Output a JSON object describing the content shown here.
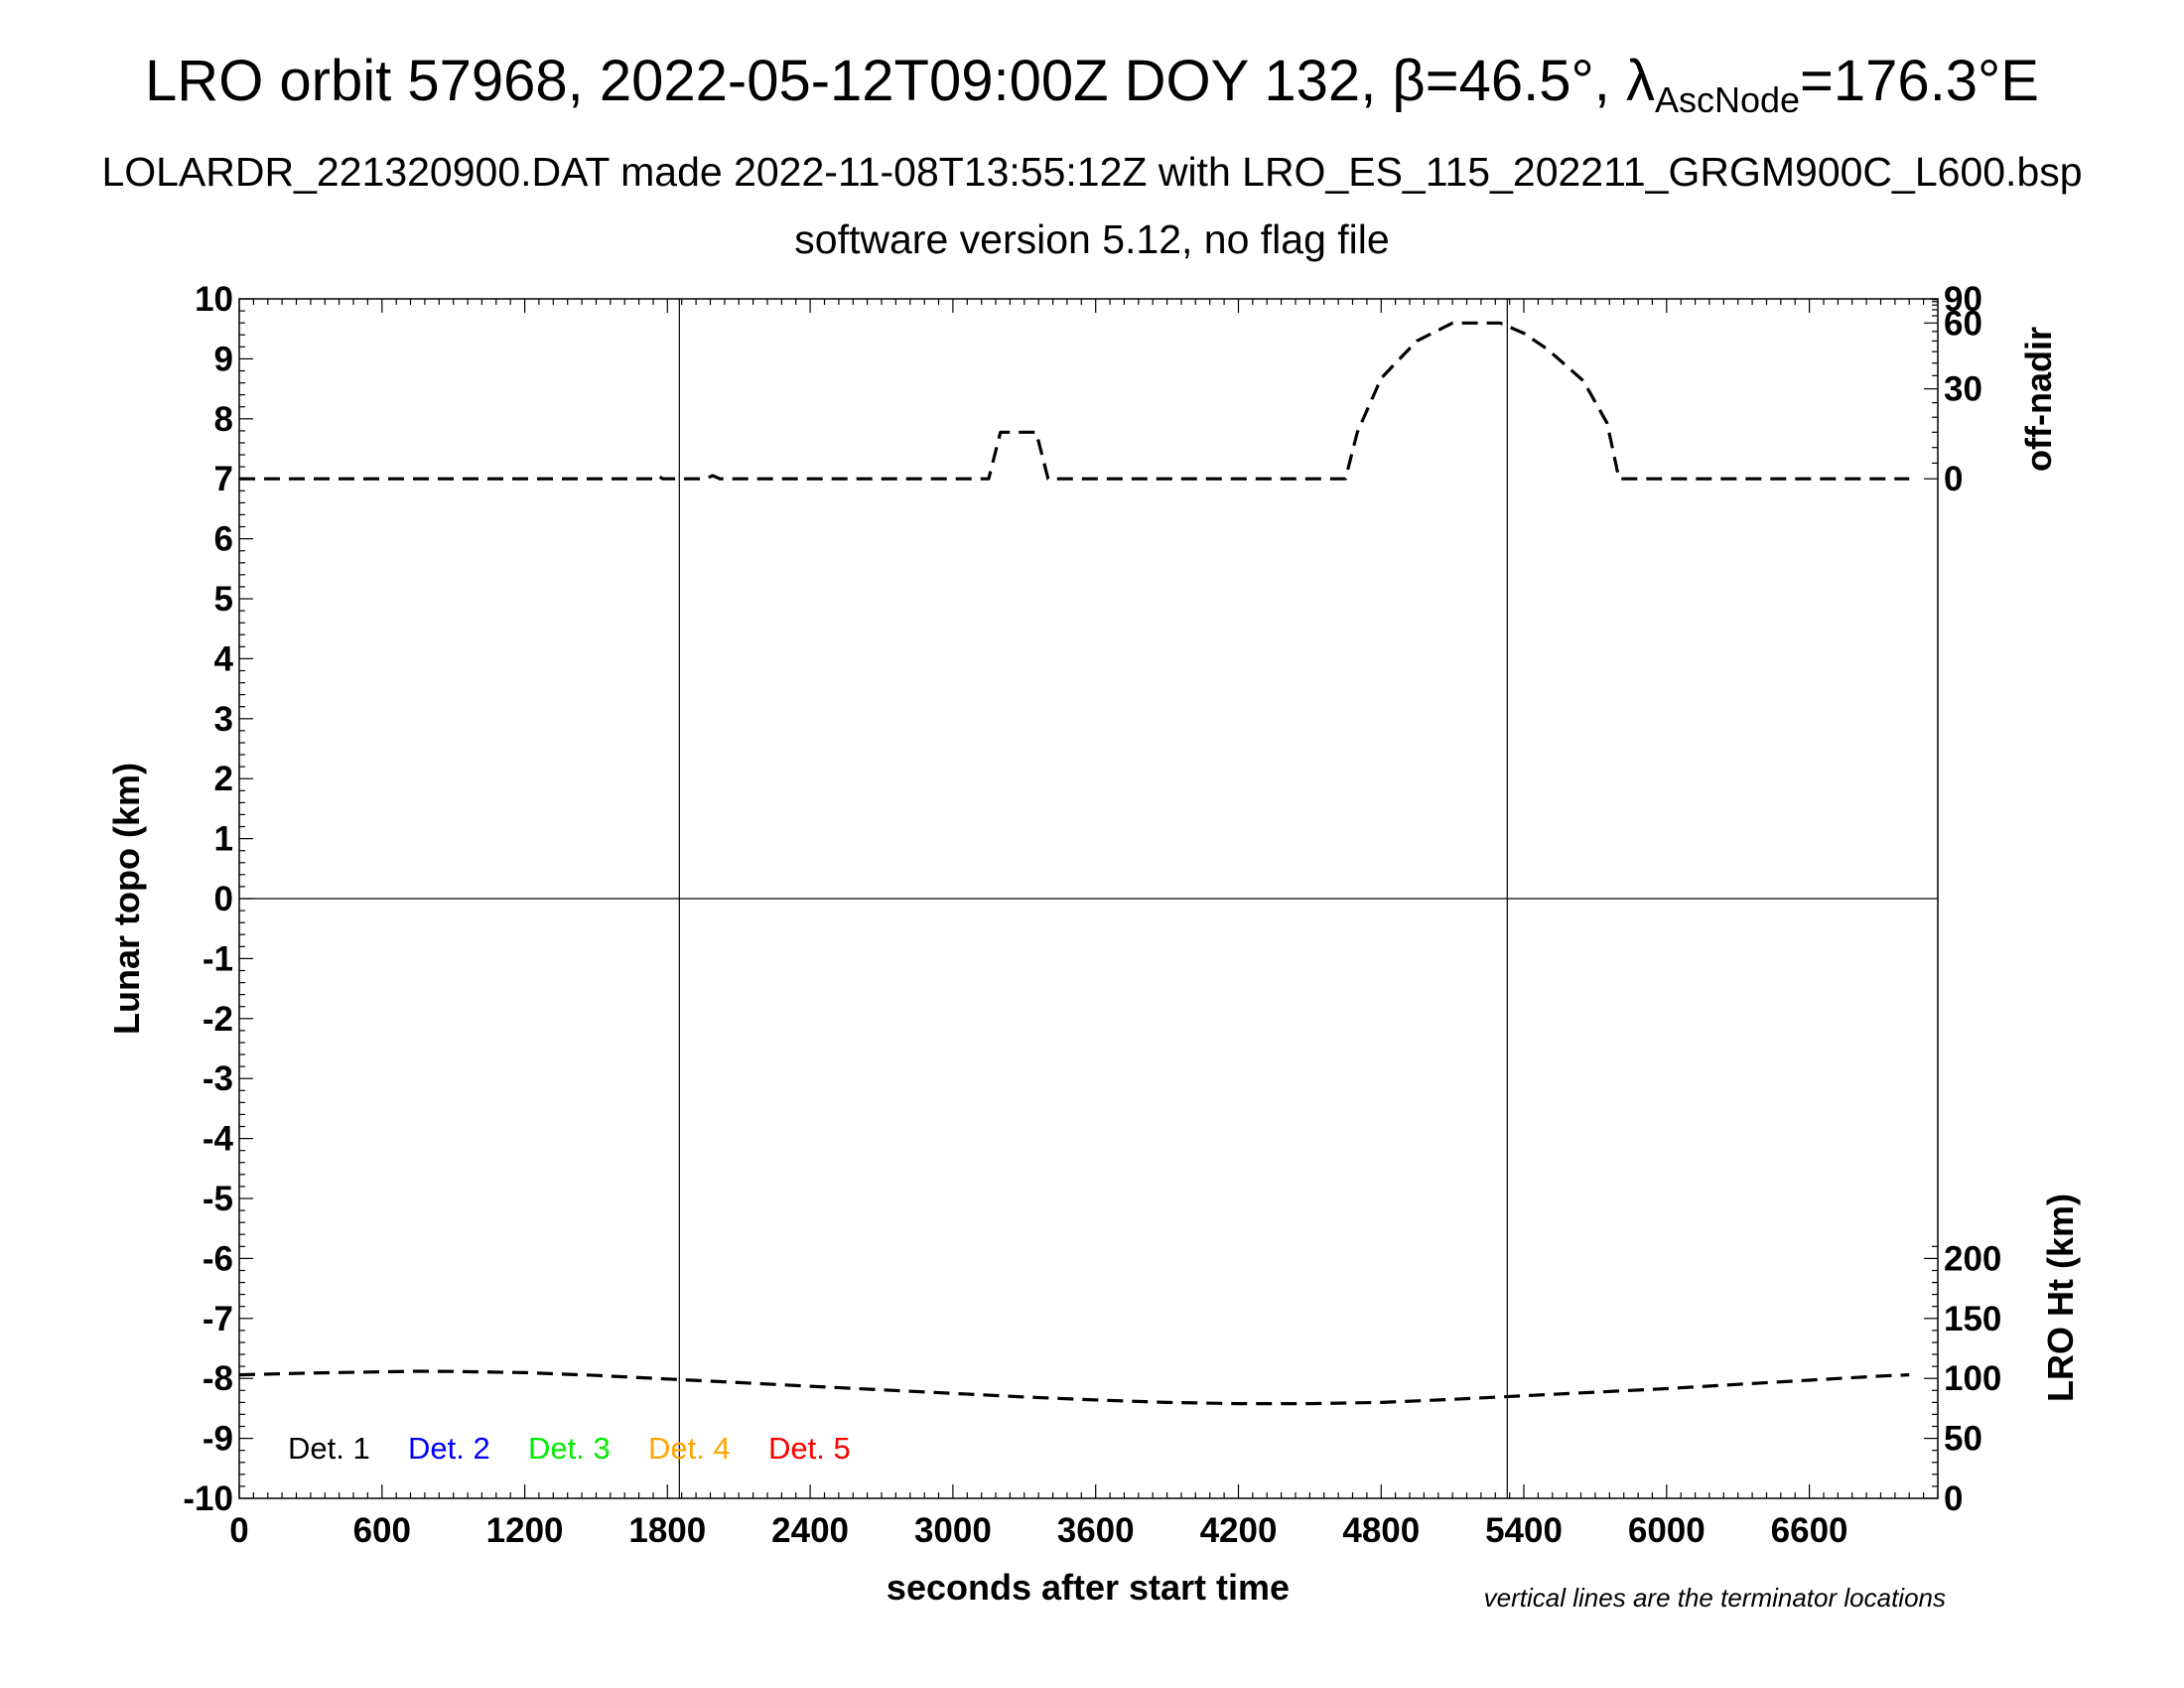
{
  "title": {
    "main_prefix": "LRO orbit 57968, 2022-05-12T09:00Z DOY 132, β=46.5°, λ",
    "main_sub": "AscNode",
    "main_suffix": "=176.3°E",
    "line2": "LOLARDR_221320900.DAT made 2022-11-08T13:55:12Z with LRO_ES_115_202211_GRGM900C_L600.bsp",
    "line3": "software version 5.12, no flag file"
  },
  "chart_data": {
    "type": "line",
    "xlabel": "seconds after start time",
    "xlim": [
      0,
      7140
    ],
    "x_ticks": [
      0,
      600,
      1200,
      1800,
      2400,
      3000,
      3600,
      4200,
      4800,
      5400,
      6000,
      6600
    ],
    "left_axis": {
      "label": "Lunar topo (km)",
      "ylim": [
        -10,
        10
      ],
      "ticks": [
        10,
        9,
        8,
        7,
        6,
        5,
        4,
        3,
        2,
        1,
        0,
        -1,
        -2,
        -3,
        -4,
        -5,
        -6,
        -7,
        -8,
        -9,
        -10
      ]
    },
    "right_axis_offnadir": {
      "label": "off-nadir",
      "ticks": [
        90,
        60,
        30,
        0
      ]
    },
    "right_axis_height": {
      "label": "LRO Ht (km)",
      "ticks": [
        200,
        150,
        100,
        50,
        0
      ]
    },
    "terminator_lines_x": [
      1850,
      5330
    ],
    "zero_line": 0,
    "series": [
      {
        "axis": "off-nadir",
        "style": "dashed",
        "x": [
          0,
          1740,
          1760,
          1780,
          1960,
          1990,
          2020,
          3150,
          3200,
          3250,
          3350,
          3400,
          4650,
          4700,
          4800,
          4950,
          5100,
          5200,
          5300,
          5400,
          5500,
          5650,
          5750,
          5800,
          7020
        ],
        "y": [
          0,
          0,
          1,
          0,
          0,
          1,
          0,
          0,
          15,
          15,
          15,
          0,
          0,
          15,
          34,
          50,
          60,
          60,
          60,
          54,
          46,
          33,
          18,
          0,
          0
        ]
      },
      {
        "axis": "LRO Ht",
        "style": "dashed",
        "x": [
          0,
          300,
          600,
          750,
          900,
          1200,
          1500,
          1800,
          2100,
          2400,
          2700,
          3000,
          3300,
          3600,
          3900,
          4200,
          4500,
          4800,
          5100,
          5400,
          5700,
          6000,
          6300,
          6600,
          6900,
          7020
        ],
        "y": [
          103,
          104.5,
          105.5,
          106,
          105.8,
          104.8,
          102.5,
          99.5,
          96.5,
          93.5,
          90.5,
          87.5,
          84.5,
          82,
          80,
          79,
          79,
          80,
          82.5,
          85.5,
          88.5,
          91.5,
          95,
          98.5,
          102,
          103
        ]
      }
    ],
    "legend": [
      {
        "label": "Det. 1",
        "color": "#000000"
      },
      {
        "label": "Det. 2",
        "color": "#0000ff"
      },
      {
        "label": "Det. 3",
        "color": "#00ee00"
      },
      {
        "label": "Det. 4",
        "color": "#ffa500"
      },
      {
        "label": "Det. 5",
        "color": "#ff0000"
      }
    ],
    "grid": false,
    "legend_placement": "bottom-left"
  },
  "note": "vertical lines are the terminator locations"
}
